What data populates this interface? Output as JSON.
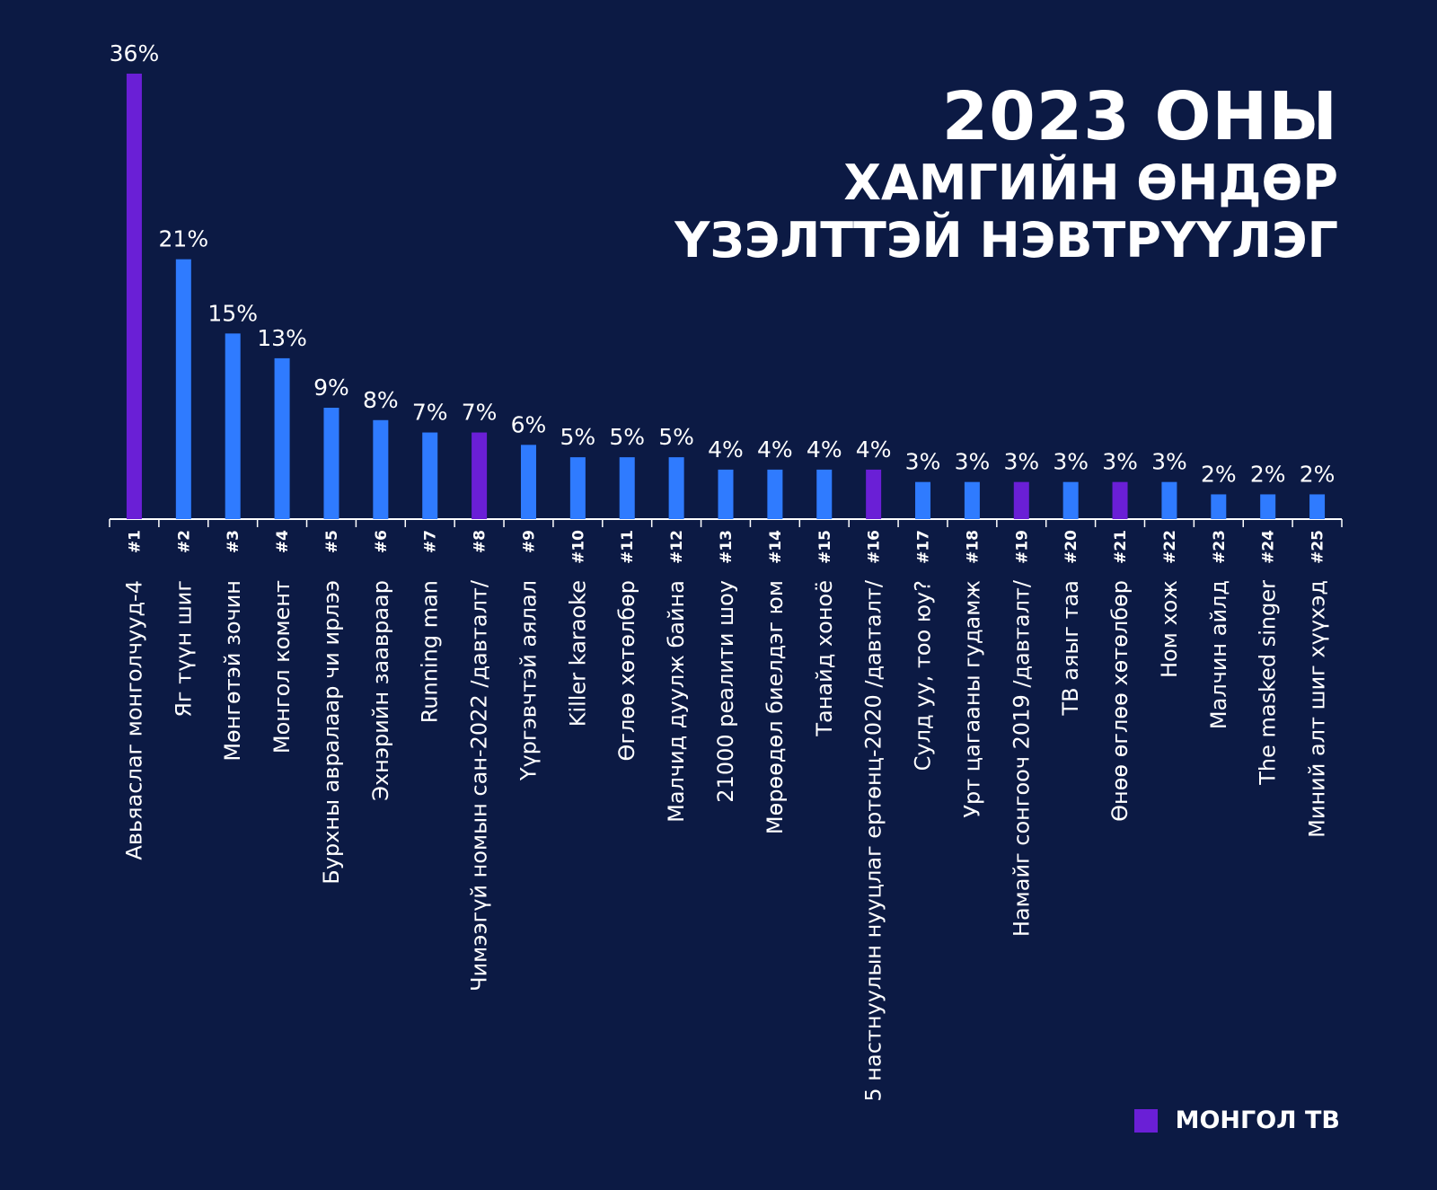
{
  "title": {
    "line1": "2023 ОНЫ",
    "line2": "ХАМГИЙН ӨНДӨР",
    "line3": "ҮЗЭЛТТЭЙ НЭВТРҮҮЛЭГ"
  },
  "legend": {
    "label": "МОНГОЛ ТВ",
    "color": "#6a1fd6"
  },
  "colors": {
    "background": "#0c1a44",
    "default_bar": "#2f7bff",
    "highlight_bar": "#6a1fd6",
    "axis": "#ffffff",
    "text": "#ffffff"
  },
  "chart_data": {
    "type": "bar",
    "title": "",
    "xlabel": "",
    "ylabel": "",
    "ylim": [
      0,
      36
    ],
    "grid": false,
    "legend_position": "bottom-right",
    "value_format": "percent",
    "ranks": [
      "#1",
      "#2",
      "#3",
      "#4",
      "#5",
      "#6",
      "#7",
      "#8",
      "#9",
      "#10",
      "#11",
      "#12",
      "#13",
      "#14",
      "#15",
      "#16",
      "#17",
      "#18",
      "#19",
      "#20",
      "#21",
      "#22",
      "#23",
      "#24",
      "#25"
    ],
    "categories": [
      "Авьяаслаг монголчууд-4",
      "Яг түүн шиг",
      "Мөнгөтэй зочин",
      "Монгол комент",
      "Бурхны авралаар чи ирлээ",
      "Эхнэрийн заавраар",
      "Running man",
      "Чимээгүй номын сан-2022 /давталт/",
      "Үүргэвчтэй аялал",
      "Killer karaoke",
      "Өглөө хөтөлбөр",
      "Малчид дуулж байна",
      "21000 реалити шоу",
      "Мөрөөдөл биелдэг юм",
      "Танайд хоноё",
      "5 настнуулын нууцлаг ертөнц-2020 /давталт/",
      "Сулд уу, тоо юу?",
      "Урт цагааны гудамж",
      "Намайг сонгооч 2019 /давталт/",
      "ТВ аяыг таа",
      "Өнөө өглөө хөтөлбөр",
      "Ном хож",
      "Малчин айлд",
      "The masked singer",
      "Миний алт шиг хүүхэд"
    ],
    "values": [
      36,
      21,
      15,
      13,
      9,
      8,
      7,
      7,
      6,
      5,
      5,
      5,
      4,
      4,
      4,
      4,
      3,
      3,
      3,
      3,
      3,
      3,
      2,
      2,
      2
    ],
    "value_labels": [
      "36%",
      "21%",
      "15%",
      "13%",
      "9%",
      "8%",
      "7%",
      "7%",
      "6%",
      "5%",
      "5%",
      "5%",
      "4%",
      "4%",
      "4%",
      "4%",
      "3%",
      "3%",
      "3%",
      "3%",
      "3%",
      "3%",
      "2%",
      "2%",
      "2%"
    ],
    "highlighted": [
      true,
      false,
      false,
      false,
      false,
      false,
      false,
      true,
      false,
      false,
      false,
      false,
      false,
      false,
      false,
      true,
      false,
      false,
      true,
      false,
      true,
      false,
      false,
      false,
      false
    ]
  }
}
